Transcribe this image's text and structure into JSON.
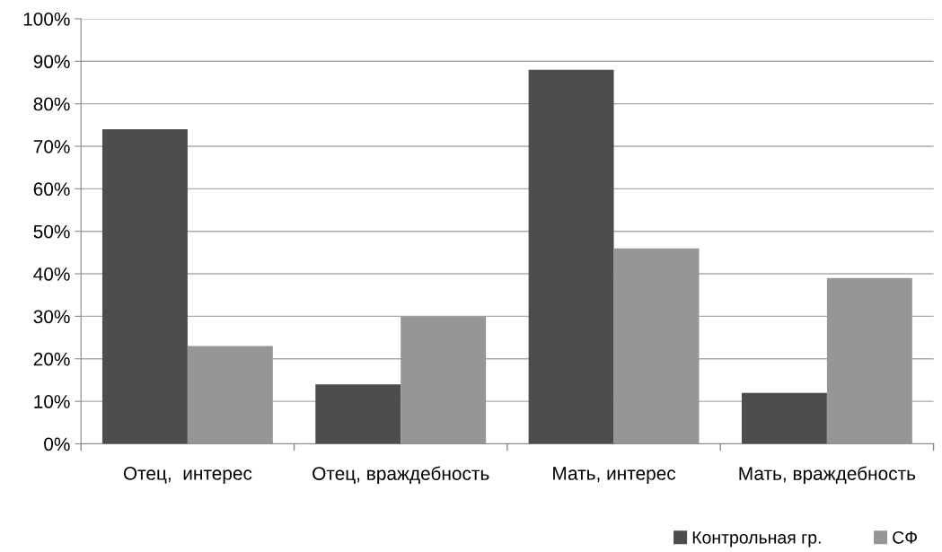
{
  "chart_data": {
    "type": "bar",
    "categories": [
      "Отец,  интерес",
      "Отец, враждебность",
      "Мать, интерес",
      "Мать, враждебность"
    ],
    "series": [
      {
        "name": "Контрольная гр.",
        "color": "#4d4d4d",
        "values": [
          74,
          14,
          88,
          12
        ]
      },
      {
        "name": "СФ",
        "color": "#969696",
        "values": [
          23,
          30,
          46,
          39
        ]
      }
    ],
    "ylim": [
      0,
      100
    ],
    "yticks": [
      {
        "value": 0,
        "label": "0%"
      },
      {
        "value": 10,
        "label": "10%"
      },
      {
        "value": 20,
        "label": "20%"
      },
      {
        "value": 30,
        "label": "30%"
      },
      {
        "value": 40,
        "label": "40%"
      },
      {
        "value": 50,
        "label": "50%"
      },
      {
        "value": 60,
        "label": "60%"
      },
      {
        "value": 70,
        "label": "70%"
      },
      {
        "value": 80,
        "label": "80%"
      },
      {
        "value": 90,
        "label": "90%"
      },
      {
        "value": 100,
        "label": "100%"
      }
    ],
    "grid": "y",
    "legend": "bottom right"
  }
}
